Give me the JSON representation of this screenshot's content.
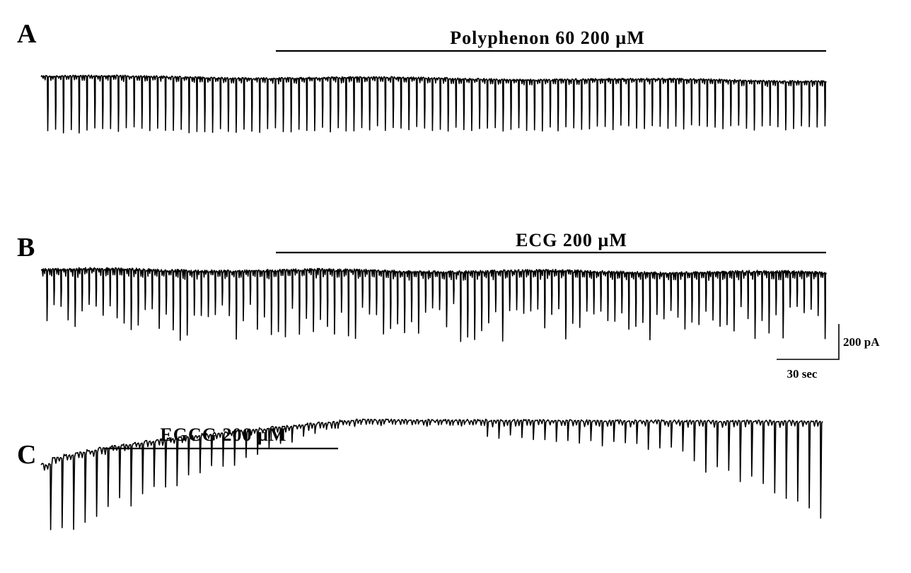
{
  "panels": [
    {
      "letter": "A",
      "treatment": "Polyphenon 60 200 µM",
      "trace": {
        "baseline_start": 0.2,
        "baseline_end": 0.1,
        "events": 100,
        "event_depth": 1.35,
        "depth_variability": 0.1,
        "mini_events": 3,
        "noise": 0.02,
        "wander": 0.02,
        "seed": 7
      }
    },
    {
      "letter": "B",
      "treatment": "ECG 200 µM",
      "trace": {
        "baseline_start": 0.1,
        "baseline_end": 0.05,
        "events": 112,
        "event_depth": 1.0,
        "depth_variability": 0.38,
        "mini_events": 3,
        "noise": 0.02,
        "wander": 0.015,
        "seed": 23
      }
    },
    {
      "letter": "C",
      "treatment": "EGCG 200 µM",
      "trace": {
        "events": 68,
        "noise": 0.02,
        "mini_events": 2,
        "seed": 41
      }
    }
  ],
  "scale_bar": {
    "current_label": "200 pA",
    "time_label": "30 sec"
  }
}
